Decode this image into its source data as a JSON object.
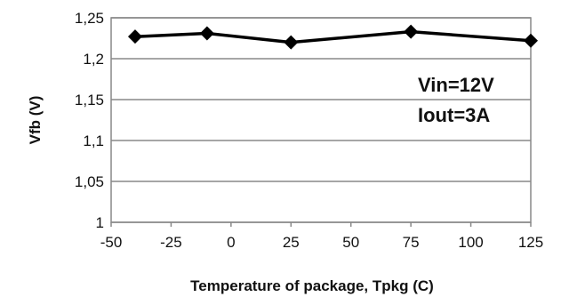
{
  "chart_data": {
    "type": "line",
    "title": "",
    "xlabel": "Temperature of package, Tpkg (C)",
    "ylabel": "Vfb (V)",
    "xlim": [
      -50,
      125
    ],
    "ylim": [
      1,
      1.25
    ],
    "xticks": [
      -50,
      -25,
      0,
      25,
      50,
      75,
      100,
      125
    ],
    "yticks": [
      1,
      1.05,
      1.1,
      1.15,
      1.2,
      1.25
    ],
    "xtick_labels": [
      "-50",
      "-25",
      "0",
      "25",
      "50",
      "75",
      "100",
      "125"
    ],
    "ytick_labels": [
      "1",
      "1,05",
      "1,1",
      "1,15",
      "1,2",
      "1,25"
    ],
    "grid": "horizontal",
    "legend": "none",
    "series": [
      {
        "x": [
          -40,
          -10,
          25,
          75,
          125
        ],
        "y": [
          1.227,
          1.231,
          1.22,
          1.233,
          1.222
        ],
        "marker": "diamond",
        "color": "#000000"
      }
    ],
    "annotations": [
      "Vin=12V",
      "Iout=3A"
    ]
  }
}
